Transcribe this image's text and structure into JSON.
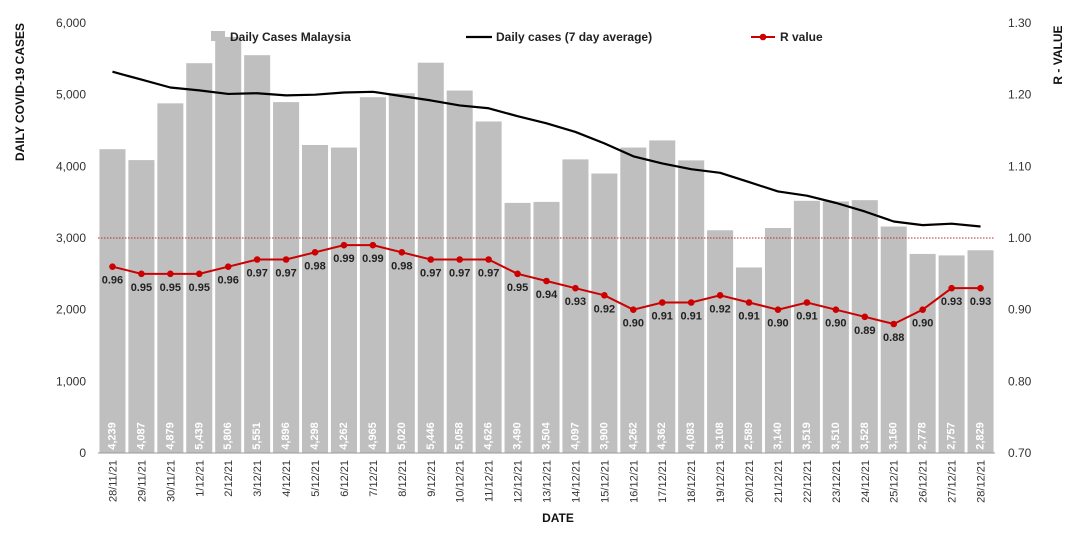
{
  "chart_data": {
    "type": "bar",
    "xlabel": "DATE",
    "ylabel": "DAILY COVID-19 CASES",
    "y2label": "R - VALUE",
    "ylim": [
      0,
      6000
    ],
    "y2lim": [
      0.7,
      1.3
    ],
    "yticks": [
      "0",
      "1,000",
      "2,000",
      "3,000",
      "4,000",
      "5,000",
      "6,000"
    ],
    "y2ticks": [
      "0.70",
      "0.80",
      "0.90",
      "1.00",
      "1.10",
      "1.20",
      "1.30"
    ],
    "reference_line": 1.0,
    "grid": false,
    "legend_position": "top",
    "categories": [
      "28/11/21",
      "29/11/21",
      "30/11/21",
      "1/12/21",
      "2/12/21",
      "3/12/21",
      "4/12/21",
      "5/12/21",
      "6/12/21",
      "7/12/21",
      "8/12/21",
      "9/12/21",
      "10/12/21",
      "11/12/21",
      "12/12/21",
      "13/12/21",
      "14/12/21",
      "15/12/21",
      "16/12/21",
      "17/12/21",
      "18/12/21",
      "19/12/21",
      "20/12/21",
      "21/12/21",
      "22/12/21",
      "23/12/21",
      "24/12/21",
      "25/12/21",
      "26/12/21",
      "27/12/21",
      "28/12/21"
    ],
    "series": [
      {
        "name": "Daily Cases Malaysia",
        "type": "bar",
        "axis": "left",
        "color": "#bfbfbf",
        "values": [
          4239,
          4087,
          4879,
          5439,
          5806,
          5551,
          4896,
          4298,
          4262,
          4965,
          5020,
          5446,
          5058,
          4626,
          3490,
          3504,
          4097,
          3900,
          4262,
          4362,
          4083,
          3108,
          2589,
          3140,
          3519,
          3510,
          3528,
          3160,
          2778,
          2757,
          2829
        ],
        "labels": [
          "4,239",
          "4,087",
          "4,879",
          "5,439",
          "5,806",
          "5,551",
          "4,896",
          "4,298",
          "4,262",
          "4,965",
          "5,020",
          "5,446",
          "5,058",
          "4,626",
          "3,490",
          "3,504",
          "4,097",
          "3,900",
          "4,262",
          "4,362",
          "4,083",
          "3,108",
          "2,589",
          "3,140",
          "3,519",
          "3,510",
          "3,528",
          "3,160",
          "2,778",
          "2,757",
          "2,829"
        ]
      },
      {
        "name": "Daily cases (7 day average)",
        "type": "line",
        "axis": "left",
        "color": "#000000",
        "values": [
          5320,
          5210,
          5100,
          5060,
          5010,
          5020,
          4990,
          5000,
          5030,
          5040,
          4980,
          4920,
          4850,
          4810,
          4700,
          4600,
          4480,
          4320,
          4140,
          4040,
          3960,
          3910,
          3780,
          3650,
          3590,
          3490,
          3370,
          3230,
          3180,
          3200,
          3160
        ]
      },
      {
        "name": "R value",
        "type": "line",
        "axis": "right",
        "color": "#cc0000",
        "values": [
          0.96,
          0.95,
          0.95,
          0.95,
          0.96,
          0.97,
          0.97,
          0.98,
          0.99,
          0.99,
          0.98,
          0.97,
          0.97,
          0.97,
          0.95,
          0.94,
          0.93,
          0.92,
          0.9,
          0.91,
          0.91,
          0.92,
          0.91,
          0.9,
          0.91,
          0.9,
          0.89,
          0.88,
          0.9,
          0.93,
          0.93
        ],
        "labels": [
          "0.96",
          "0.95",
          "0.95",
          "0.95",
          "0.96",
          "0.97",
          "0.97",
          "0.98",
          "0.99",
          "0.99",
          "0.98",
          "0.97",
          "0.97",
          "0.97",
          "0.95",
          "0.94",
          "0.93",
          "0.92",
          "0.90",
          "0.91",
          "0.91",
          "0.92",
          "0.91",
          "0.90",
          "0.91",
          "0.90",
          "0.89",
          "0.88",
          "0.90",
          "0.93",
          "0.93"
        ]
      }
    ]
  }
}
